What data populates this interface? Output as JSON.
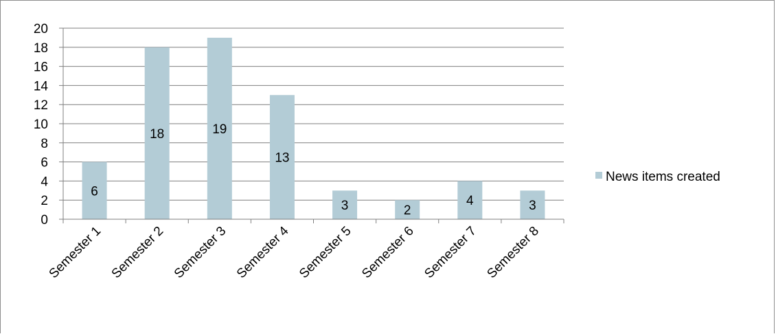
{
  "chart_data": {
    "type": "bar",
    "categories": [
      "Semester 1",
      "Semester 2",
      "Semester 3",
      "Semester 4",
      "Semester 5",
      "Semester 6",
      "Semester 7",
      "Semester 8"
    ],
    "series": [
      {
        "name": "News items created",
        "values": [
          6,
          18,
          19,
          13,
          3,
          2,
          4,
          3
        ]
      }
    ],
    "ylim": [
      0,
      20
    ],
    "yticks": [
      0,
      2,
      4,
      6,
      8,
      10,
      12,
      14,
      16,
      18,
      20
    ],
    "grid": true,
    "legend_position": "right",
    "data_labels": true,
    "colors": {
      "bar": "#b3ccd6",
      "grid": "#7f7f7f",
      "axis": "#7f7f7f"
    }
  }
}
